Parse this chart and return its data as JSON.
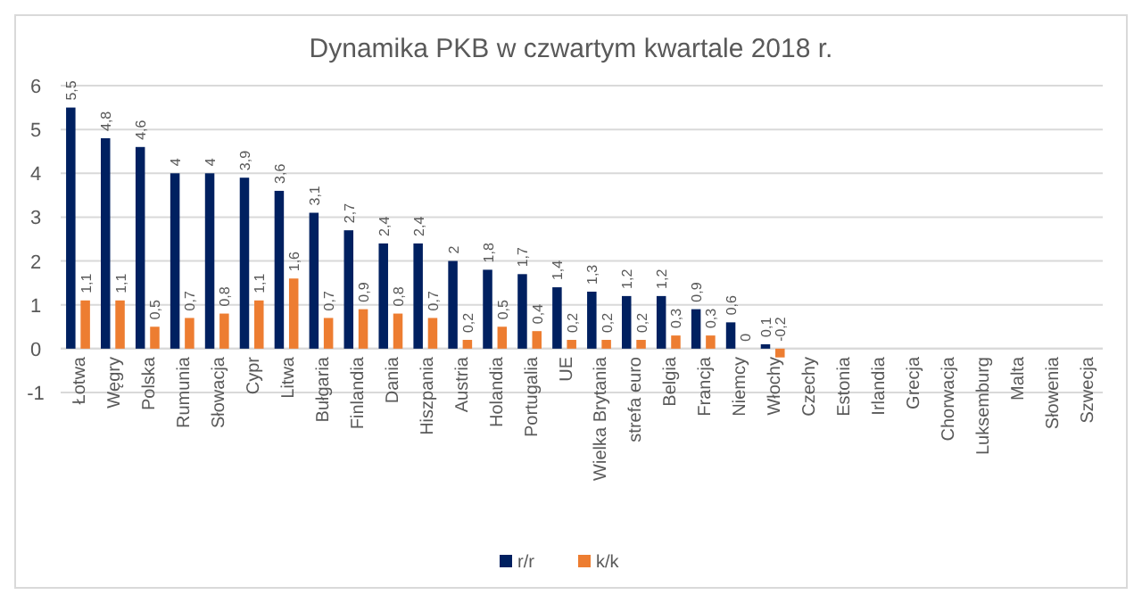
{
  "chart_data": {
    "type": "bar",
    "title": "Dynamika PKB w czwartym kwartale 2018 r.",
    "categories": [
      "Łotwa",
      "Węgry",
      "Polska",
      "Rumunia",
      "Słowacja",
      "Cypr",
      "Litwa",
      "Bułgaria",
      "Finlandia",
      "Dania",
      "Hiszpania",
      "Austria",
      "Holandia",
      "Portugalia",
      "UE",
      "Wielka Brytania",
      "strefa euro",
      "Belgia",
      "Francja",
      "Niemcy",
      "Włochy",
      "Czechy",
      "Estonia",
      "Irlandia",
      "Grecja",
      "Chorwacja",
      "Luksemburg",
      "Malta",
      "Słowenia",
      "Szwecja"
    ],
    "series": [
      {
        "name": "r/r",
        "color": "#002060",
        "values": [
          5.5,
          4.8,
          4.6,
          4,
          4,
          3.9,
          3.6,
          3.1,
          2.7,
          2.4,
          2.4,
          2,
          1.8,
          1.7,
          1.4,
          1.3,
          1.2,
          1.2,
          0.9,
          0.6,
          0.1,
          null,
          null,
          null,
          null,
          null,
          null,
          null,
          null,
          null
        ],
        "value_labels": [
          "5,5",
          "4,8",
          "4,6",
          "4",
          "4",
          "3,9",
          "3,6",
          "3,1",
          "2,7",
          "2,4",
          "2,4",
          "2",
          "1,8",
          "1,7",
          "1,4",
          "1,3",
          "1,2",
          "1,2",
          "0,9",
          "0,6",
          "0,1",
          null,
          null,
          null,
          null,
          null,
          null,
          null,
          null,
          null
        ]
      },
      {
        "name": "k/k",
        "color": "#ed7d31",
        "values": [
          1.1,
          1.1,
          0.5,
          0.7,
          0.8,
          1.1,
          1.6,
          0.7,
          0.9,
          0.8,
          0.7,
          0.2,
          0.5,
          0.4,
          0.2,
          0.2,
          0.2,
          0.3,
          0.3,
          0,
          -0.2,
          null,
          null,
          null,
          null,
          null,
          null,
          null,
          null,
          null
        ],
        "value_labels": [
          "1,1",
          "1,1",
          "0,5",
          "0,7",
          "0,8",
          "1,1",
          "1,6",
          "0,7",
          "0,9",
          "0,8",
          "0,7",
          "0,2",
          "0,5",
          "0,4",
          "0,2",
          "0,2",
          "0,2",
          "0,3",
          "0,3",
          "0",
          "-0,2",
          null,
          null,
          null,
          null,
          null,
          null,
          null,
          null,
          null
        ]
      }
    ],
    "ylim": [
      -1,
      6
    ],
    "yticks": [
      -1,
      0,
      1,
      2,
      3,
      4,
      5,
      6
    ],
    "grid": "y",
    "legend": "bottom"
  }
}
